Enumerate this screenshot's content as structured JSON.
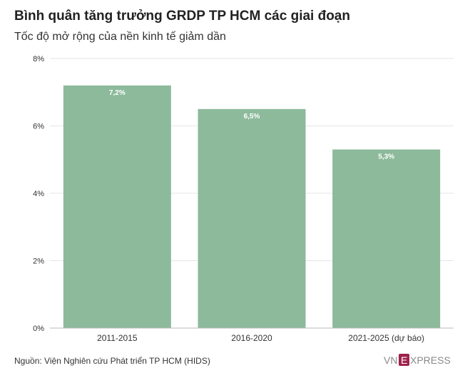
{
  "header": {
    "title": "Bình quân tăng trưởng GRDP TP HCM các giai đoạn",
    "subtitle": "Tốc độ mở rộng của nền kinh tế giảm dần"
  },
  "footer": {
    "source": "Nguồn: Viện Nghiên cứu Phát triển TP HCM (HIDS)",
    "logo_text_left": "VN",
    "logo_text_mid": "E",
    "logo_text_right": "XPRESS"
  },
  "colors": {
    "bar": "#8cba9b",
    "grid": "#e6e6e6",
    "axis": "#bbbbbb",
    "logo_red": "#9f224e",
    "logo_gray": "#8a8a8a"
  },
  "chart_data": {
    "type": "bar",
    "categories": [
      "2011-2015",
      "2016-2020",
      "2021-2025 (dự báo)"
    ],
    "values": [
      7.2,
      6.5,
      5.3
    ],
    "value_labels": [
      "7,2%",
      "6,5%",
      "5,3%"
    ],
    "ylim": [
      0,
      8
    ],
    "yticks": [
      0,
      2,
      4,
      6,
      8
    ],
    "ytick_labels": [
      "0%",
      "2%",
      "4%",
      "6%",
      "8%"
    ],
    "grid": true,
    "legend": "none"
  }
}
